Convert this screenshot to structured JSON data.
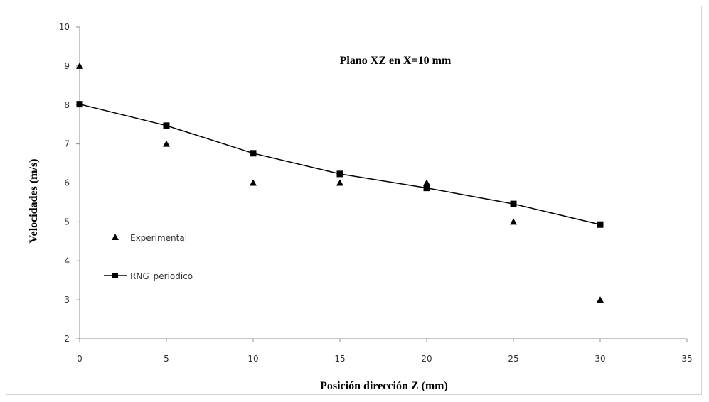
{
  "chart_data": {
    "type": "scatter",
    "title": "Plano XZ en X=10 mm",
    "xlabel": "Posición dirección Z (mm)",
    "ylabel": "Velocidades (m/s)",
    "xlim": [
      0,
      35
    ],
    "ylim": [
      2,
      10
    ],
    "xticks": [
      "0",
      "5",
      "10",
      "15",
      "20",
      "25",
      "30",
      "35"
    ],
    "yticks": [
      "2",
      "3",
      "4",
      "5",
      "6",
      "7",
      "8",
      "9",
      "10"
    ],
    "grid": false,
    "legend_position": "left",
    "series": [
      {
        "name": "Experimental",
        "marker": "triangle",
        "line": false,
        "color": "#000000",
        "points": [
          {
            "x": 0,
            "y": 9.0
          },
          {
            "x": 5,
            "y": 7.0
          },
          {
            "x": 10,
            "y": 6.0
          },
          {
            "x": 15,
            "y": 6.0
          },
          {
            "x": 20,
            "y": 6.0
          },
          {
            "x": 25,
            "y": 5.0
          },
          {
            "x": 30,
            "y": 3.0
          }
        ]
      },
      {
        "name": "RNG_periodico",
        "marker": "square",
        "line": true,
        "color": "#000000",
        "points": [
          {
            "x": 0,
            "y": 8.02
          },
          {
            "x": 5,
            "y": 7.47
          },
          {
            "x": 10,
            "y": 6.76
          },
          {
            "x": 15,
            "y": 6.23
          },
          {
            "x": 20,
            "y": 5.87
          },
          {
            "x": 25,
            "y": 5.46
          },
          {
            "x": 30,
            "y": 4.93
          }
        ]
      }
    ]
  }
}
